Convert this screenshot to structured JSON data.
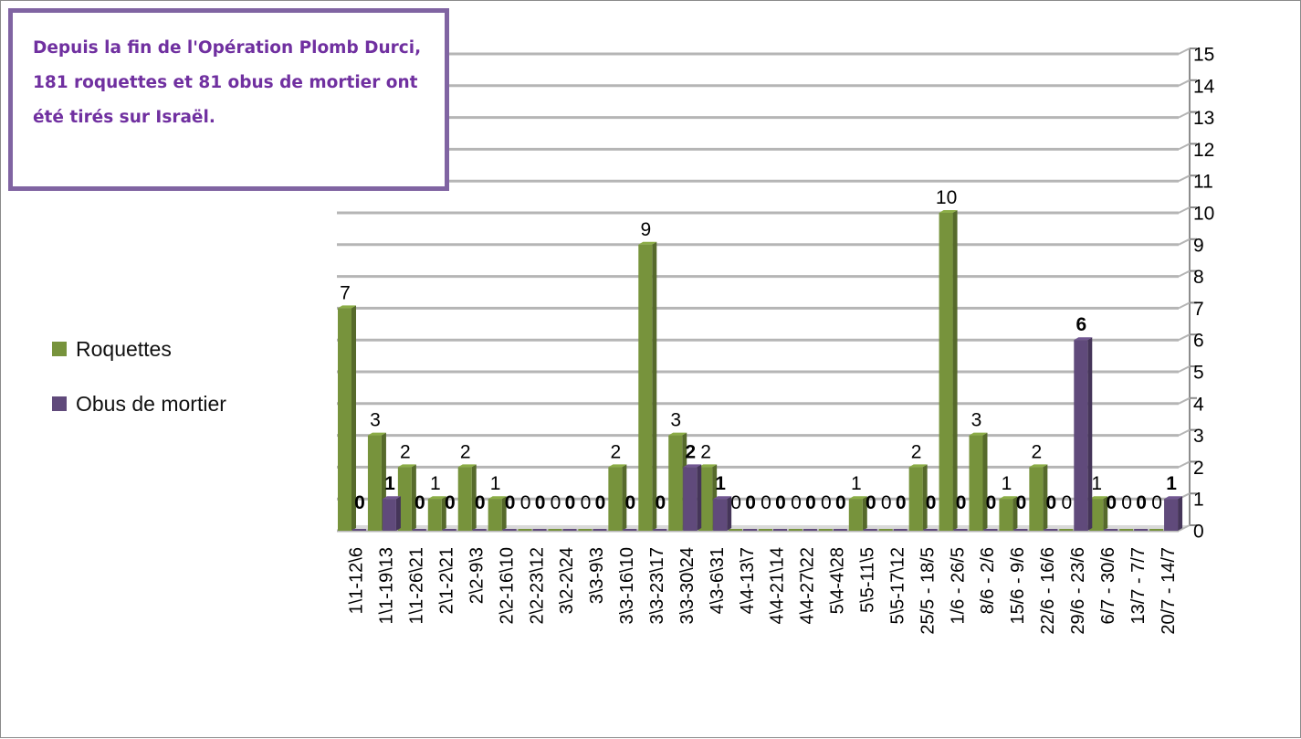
{
  "chart_data": {
    "type": "bar",
    "title": "",
    "xlabel": "",
    "ylabel": "",
    "ylim": [
      0,
      15
    ],
    "yticks": [
      0,
      1,
      2,
      3,
      4,
      5,
      6,
      7,
      8,
      9,
      10,
      11,
      12,
      13,
      14,
      15
    ],
    "y_axis_side": "right",
    "grid": true,
    "three_d": true,
    "legend_position": "left",
    "categories": [
      "1\\1-12\\6",
      "1\\1-19\\13",
      "1\\1-26\\21",
      "2\\1-2\\21",
      "2\\2-9\\3",
      "2\\2-16\\10",
      "2\\2-23\\12",
      "3\\2-2\\24",
      "3\\3-9\\3",
      "3\\3-16\\10",
      "3\\3-23\\17",
      "3\\3-30\\24",
      "4\\3-6\\31",
      "4\\4-13\\7",
      "4\\4-21\\14",
      "4\\4-27\\22",
      "5\\4-4\\28",
      "5\\5-11\\5",
      "5\\5-17\\12",
      "25/5 - 18/5",
      "1/6 - 26/5",
      "8/6 - 2/6",
      "15/6 - 9/6",
      "22/6 - 16/6",
      "29/6 - 23/6",
      "6/7 - 30/6",
      "13/7 - 7/7",
      "20/7 - 14/7"
    ],
    "series": [
      {
        "name": "Roquettes",
        "color": "#77933c",
        "values": [
          7,
          3,
          2,
          1,
          2,
          1,
          0,
          0,
          0,
          2,
          9,
          3,
          2,
          0,
          0,
          0,
          0,
          1,
          0,
          2,
          10,
          3,
          1,
          2,
          0,
          1,
          0,
          0
        ]
      },
      {
        "name": "Obus de mortier",
        "color": "#604a7b",
        "values": [
          0,
          1,
          0,
          0,
          0,
          0,
          0,
          0,
          0,
          0,
          0,
          2,
          1,
          0,
          0,
          0,
          0,
          0,
          0,
          0,
          0,
          0,
          0,
          0,
          6,
          0,
          0,
          1
        ]
      }
    ],
    "data_labels": {
      "Roquettes": [
        "7",
        "3",
        "2",
        "1",
        "2",
        "1",
        "0",
        "0",
        "0",
        "2",
        "9",
        "3",
        "2",
        "0",
        "0",
        "0",
        "0",
        "1",
        "0",
        "2",
        "10",
        "3",
        "1",
        "2",
        "0",
        "1",
        "0",
        "0"
      ],
      "Obus de mortier": [
        "0",
        "1",
        "0",
        "0",
        "0",
        "0",
        "0",
        "0",
        "0",
        "0",
        "0",
        "2",
        "1",
        "0",
        "0",
        "0",
        "0",
        "0",
        "0",
        "0",
        "0",
        "0",
        "0",
        "0",
        "6",
        "0",
        "0",
        "1"
      ]
    }
  },
  "annotation": {
    "text": "Depuis la fin de l'Opération Plomb Durci, 181 roquettes et 81 obus de mortier ont été tirés sur Israël.",
    "border_color": "#8064a2",
    "text_color": "#7030a0"
  }
}
